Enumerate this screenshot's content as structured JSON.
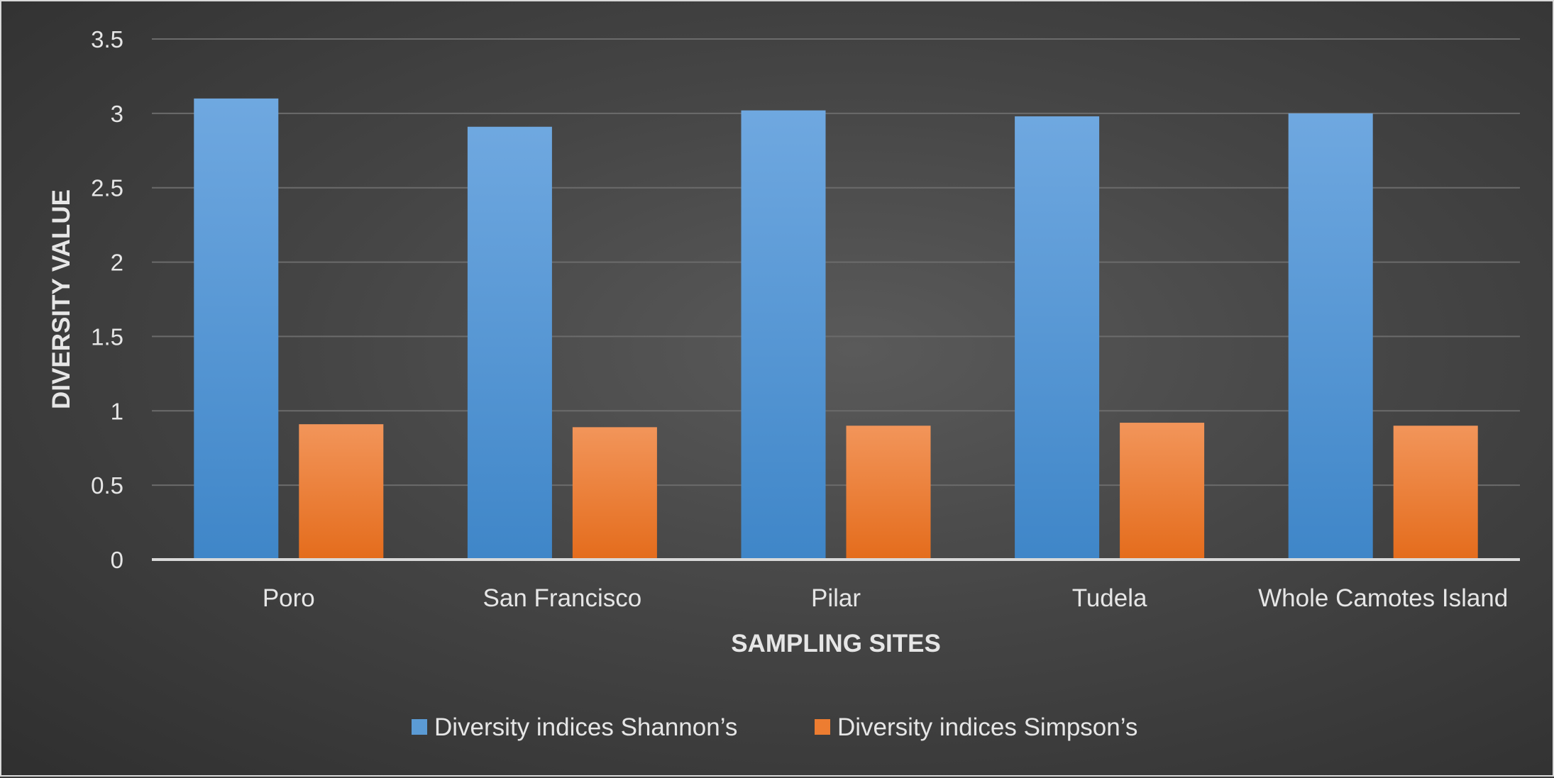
{
  "chart_data": {
    "type": "bar",
    "xlabel": "SAMPLING SITES",
    "ylabel": "DIVERSITY VALUE",
    "categories": [
      "Poro",
      "San Francisco",
      "Pilar",
      "Tudela",
      "Whole Camotes Island"
    ],
    "series": [
      {
        "name": "Diversity indices Shannon’s",
        "values": [
          3.1,
          2.91,
          3.02,
          2.98,
          3.0
        ],
        "color": "#5b9bd5"
      },
      {
        "name": "Diversity indices Simpson’s",
        "values": [
          0.91,
          0.89,
          0.9,
          0.92,
          0.9
        ],
        "color": "#ed7d31"
      }
    ],
    "ylim": [
      0,
      3.5
    ],
    "yticks": [
      "0",
      "0.5",
      "1",
      "1.5",
      "2",
      "2.5",
      "3",
      "3.5"
    ],
    "grid": true,
    "legend": "bottom"
  }
}
